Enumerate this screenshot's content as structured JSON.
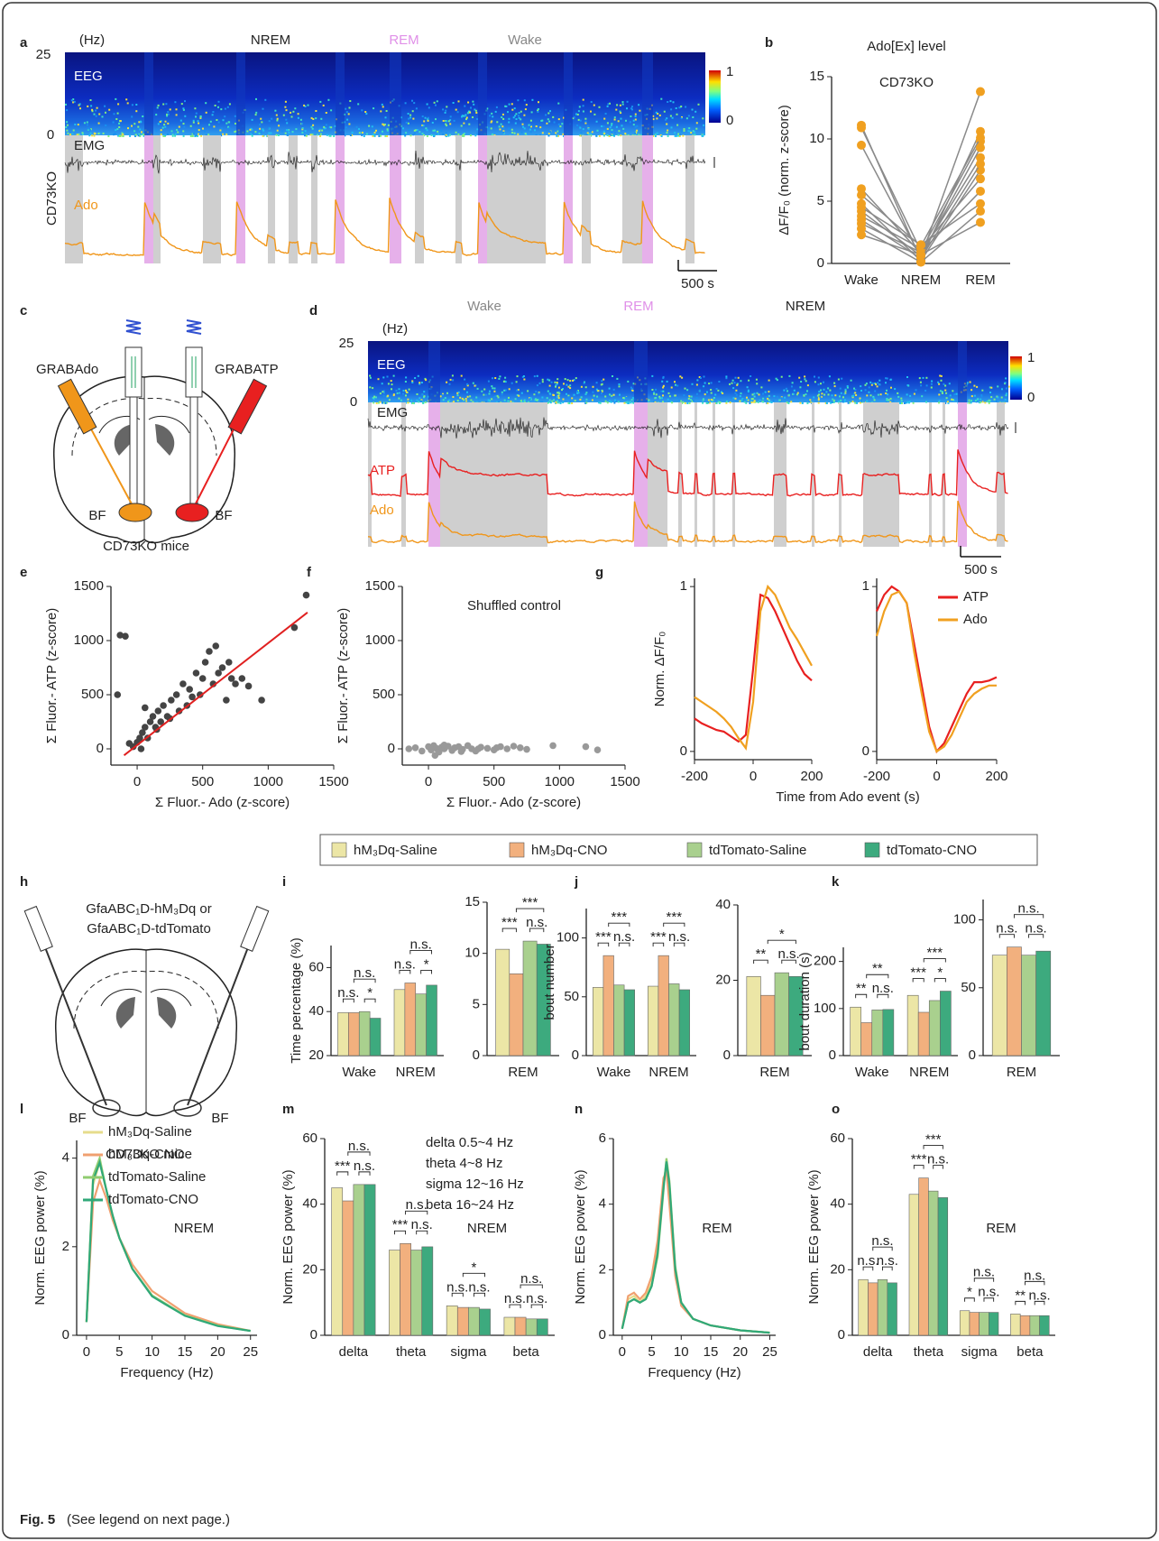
{
  "figure": {
    "panels": [
      "a",
      "b",
      "c",
      "d",
      "e",
      "f",
      "g",
      "h",
      "i",
      "j",
      "k",
      "l",
      "m",
      "n",
      "o"
    ],
    "caption": {
      "label": "Fig. 5",
      "text": "(See legend on next page.)"
    },
    "panel_a": {
      "unit": "(Hz)",
      "top": "25",
      "bottom": "0",
      "states": [
        "NREM",
        "REM",
        "Wake"
      ],
      "eeg": "EEG",
      "emg": "EMG",
      "mouse": "CD73KO",
      "trace": "Ado",
      "scale": "500 s",
      "colorbar": [
        "1",
        "0"
      ]
    },
    "panel_c": {
      "sensors": [
        "GRABAdo",
        "GRABATP"
      ],
      "regions": [
        "BF",
        "BF"
      ],
      "mice": "CD73KO mice"
    },
    "panel_d": {
      "unit": "(Hz)",
      "top": "25",
      "bottom": "0",
      "states": [
        "Wake",
        "REM",
        "NREM"
      ],
      "eeg": "EEG",
      "emg": "EMG",
      "traces": [
        "ATP",
        "Ado"
      ],
      "scale": "500 s",
      "colorbar": [
        "1",
        "0"
      ]
    },
    "panel_h": {
      "constructs": [
        "GfaABC₁D-hM₃Dq or",
        "GfaABC₁D-tdTomato"
      ],
      "regions": [
        "BF",
        "BF"
      ],
      "mice": "CD73KO mice"
    },
    "legend": [
      {
        "name": "hM₃Dq-Saline",
        "color": "#ece6a6"
      },
      {
        "name": "hM₃Dq-CNO",
        "color": "#f2b07e"
      },
      {
        "name": "tdTomato-Saline",
        "color": "#a9d08e"
      },
      {
        "name": "tdTomato-CNO",
        "color": "#3daa7e"
      }
    ]
  },
  "chart_data": [
    {
      "type": "line",
      "title": "Ado[Ex] level",
      "subtitle": "CD73KO",
      "ylabel": "ΔF/F₀ (norm. z-score)",
      "categories": [
        "Wake",
        "NREM",
        "REM"
      ],
      "color": "#f0a020",
      "line_color": "#8a8a8a",
      "ylim": [
        0,
        15
      ],
      "yticks": [
        0,
        5,
        10,
        15
      ],
      "series": [
        {
          "values": [
            11.1,
            0.3,
            10.6
          ]
        },
        {
          "values": [
            10.9,
            1.0,
            9.8
          ]
        },
        {
          "values": [
            9.5,
            0.5,
            13.8
          ]
        },
        {
          "values": [
            6.0,
            0.8,
            8.5
          ]
        },
        {
          "values": [
            5.5,
            1.4,
            10.1
          ]
        },
        {
          "values": [
            4.8,
            0.2,
            7.5
          ]
        },
        {
          "values": [
            4.2,
            0.6,
            9.3
          ]
        },
        {
          "values": [
            3.8,
            1.2,
            6.8
          ]
        },
        {
          "values": [
            3.5,
            0.4,
            8.0
          ]
        },
        {
          "values": [
            3.2,
            0.9,
            5.8
          ]
        },
        {
          "values": [
            2.8,
            0.1,
            4.2
          ]
        },
        {
          "values": [
            2.3,
            0.7,
            3.3
          ]
        },
        {
          "values": [
            4.5,
            1.5,
            4.8
          ]
        }
      ]
    },
    {
      "type": "scatter",
      "xlabel": "Σ Fluor.- Ado (z-score)",
      "ylabel": "Σ Fluor.- ATP (z-score)",
      "color": "#444",
      "xlim": [
        -200,
        1500
      ],
      "xticks": [
        0,
        500,
        1000,
        1500
      ],
      "ylim": [
        -150,
        1500
      ],
      "yticks": [
        0,
        500,
        1000,
        1500
      ],
      "x": [
        -130,
        -90,
        -150,
        -60,
        -30,
        0,
        20,
        40,
        60,
        80,
        100,
        120,
        140,
        160,
        180,
        200,
        230,
        260,
        300,
        320,
        350,
        380,
        400,
        420,
        450,
        480,
        500,
        520,
        550,
        580,
        600,
        620,
        650,
        680,
        700,
        720,
        750,
        800,
        850,
        950,
        1200,
        1290,
        60,
        150,
        250,
        30
      ],
      "y": [
        1050,
        1040,
        500,
        50,
        20,
        60,
        100,
        150,
        200,
        100,
        250,
        300,
        200,
        350,
        250,
        400,
        300,
        450,
        500,
        350,
        600,
        400,
        550,
        480,
        700,
        500,
        650,
        800,
        900,
        600,
        950,
        700,
        750,
        450,
        800,
        650,
        600,
        650,
        580,
        450,
        1120,
        1420,
        380,
        180,
        280,
        0
      ],
      "fit": {
        "x": [
          -100,
          1300
        ],
        "y": [
          -60,
          1260
        ],
        "color": "#e02020"
      }
    },
    {
      "type": "scatter",
      "annotation": "Shuffled control",
      "xlabel": "Σ Fluor.- Ado (z-score)",
      "ylabel": "Σ Fluor.- ATP (z-score)",
      "color": "#999",
      "xlim": [
        -200,
        1500
      ],
      "xticks": [
        0,
        500,
        1000,
        1500
      ],
      "ylim": [
        -150,
        1500
      ],
      "yticks": [
        0,
        500,
        1000,
        1500
      ],
      "x": [
        -150,
        -100,
        -50,
        0,
        20,
        40,
        60,
        80,
        100,
        120,
        150,
        180,
        200,
        230,
        260,
        300,
        330,
        360,
        400,
        450,
        500,
        550,
        600,
        650,
        700,
        750,
        950,
        1200,
        1290,
        50,
        120,
        250,
        380,
        520
      ],
      "y": [
        0,
        10,
        -20,
        20,
        -10,
        30,
        5,
        -30,
        15,
        0,
        25,
        -15,
        10,
        20,
        -5,
        30,
        0,
        -20,
        15,
        5,
        -10,
        20,
        0,
        25,
        10,
        -5,
        30,
        20,
        -10,
        -60,
        35,
        -25,
        0,
        10
      ]
    },
    {
      "type": "line",
      "xlabel": "Time from Ado event (s)",
      "ylabel": "Norm. ΔF/F₀",
      "x": [
        -200,
        -175,
        -150,
        -125,
        -100,
        -75,
        -50,
        -25,
        0,
        25,
        50,
        75,
        100,
        125,
        150,
        175,
        200
      ],
      "xlim": [
        -200,
        200
      ],
      "xticks": [
        -200,
        0,
        200
      ],
      "ylim": [
        -0.05,
        1.05
      ],
      "yticks": [
        0,
        1
      ],
      "series": [
        {
          "color": "#e82020",
          "values": [
            0.2,
            0.17,
            0.15,
            0.13,
            0.12,
            0.09,
            0.06,
            0.1,
            0.5,
            0.95,
            0.93,
            0.85,
            0.75,
            0.65,
            0.55,
            0.47,
            0.43
          ]
        },
        {
          "color": "#f0a020",
          "values": [
            0.33,
            0.3,
            0.27,
            0.24,
            0.2,
            0.15,
            0.08,
            0.02,
            0.3,
            0.85,
            1.0,
            0.95,
            0.85,
            0.75,
            0.68,
            0.6,
            0.52
          ]
        }
      ]
    },
    {
      "type": "line",
      "x": [
        -200,
        -175,
        -150,
        -125,
        -100,
        -75,
        -50,
        -25,
        0,
        25,
        50,
        75,
        100,
        125,
        150,
        175,
        200
      ],
      "xlim": [
        -200,
        200
      ],
      "xticks": [
        -200,
        0,
        200
      ],
      "ylim": [
        -0.05,
        1.05
      ],
      "yticks": [
        0,
        1
      ],
      "series": [
        {
          "name": "ATP",
          "color": "#e82020",
          "values": [
            0.85,
            0.95,
            1.0,
            0.97,
            0.9,
            0.65,
            0.4,
            0.15,
            0.0,
            0.05,
            0.15,
            0.25,
            0.35,
            0.42,
            0.42,
            0.43,
            0.45
          ]
        },
        {
          "name": "Ado",
          "color": "#f0a020",
          "values": [
            0.7,
            0.85,
            0.95,
            0.97,
            0.9,
            0.6,
            0.35,
            0.12,
            0.0,
            0.03,
            0.1,
            0.2,
            0.3,
            0.35,
            0.38,
            0.4,
            0.4
          ]
        }
      ]
    },
    {
      "type": "bar",
      "ylabel": "Time percentage (%)",
      "categories": [
        "Wake",
        "NREM"
      ],
      "ylim": [
        20,
        70
      ],
      "yticks": [
        20,
        40,
        60
      ],
      "series": [
        {
          "values": [
            39.5,
            50
          ]
        },
        {
          "values": [
            39.5,
            53
          ]
        },
        {
          "values": [
            40,
            48
          ]
        },
        {
          "values": [
            37,
            52
          ]
        }
      ],
      "significance": [
        [
          "n.s.",
          "*",
          "n.s."
        ],
        [
          "n.s.",
          "*",
          "n.s."
        ]
      ]
    },
    {
      "type": "bar",
      "categories": [
        "REM"
      ],
      "ylim": [
        0,
        15
      ],
      "yticks": [
        0,
        5,
        10,
        15
      ],
      "series": [
        {
          "values": [
            10.4
          ]
        },
        {
          "values": [
            8
          ]
        },
        {
          "values": [
            11.2
          ]
        },
        {
          "values": [
            10.9
          ]
        }
      ],
      "significance": [
        [
          "***",
          "n.s.",
          "***"
        ]
      ]
    },
    {
      "type": "bar",
      "ylabel": "bout number",
      "categories": [
        "Wake",
        "NREM"
      ],
      "ylim": [
        0,
        125
      ],
      "yticks": [
        0,
        50,
        100
      ],
      "series": [
        {
          "values": [
            58,
            59
          ]
        },
        {
          "values": [
            85,
            85
          ]
        },
        {
          "values": [
            60,
            61
          ]
        },
        {
          "values": [
            56,
            56
          ]
        }
      ],
      "significance": [
        [
          "***",
          "n.s.",
          "***"
        ],
        [
          "***",
          "n.s.",
          "***"
        ]
      ]
    },
    {
      "type": "bar",
      "categories": [
        "REM"
      ],
      "ylim": [
        0,
        40
      ],
      "yticks": [
        0,
        20,
        40
      ],
      "series": [
        {
          "values": [
            21
          ]
        },
        {
          "values": [
            16
          ]
        },
        {
          "values": [
            22
          ]
        },
        {
          "values": [
            21
          ]
        }
      ],
      "significance": [
        [
          "**",
          "n.s.",
          "*"
        ]
      ]
    },
    {
      "type": "bar",
      "ylabel": "bout duration (s)",
      "categories": [
        "Wake",
        "NREM"
      ],
      "ylim": [
        0,
        230
      ],
      "yticks": [
        0,
        100,
        200
      ],
      "series": [
        {
          "values": [
            103,
            128
          ]
        },
        {
          "values": [
            70,
            92
          ]
        },
        {
          "values": [
            97,
            117
          ]
        },
        {
          "values": [
            98,
            137
          ]
        }
      ],
      "significance": [
        [
          "**",
          "n.s.",
          "**"
        ],
        [
          "***",
          "*",
          "***"
        ]
      ]
    },
    {
      "type": "bar",
      "categories": [
        "REM"
      ],
      "ylim": [
        0,
        115
      ],
      "yticks": [
        0,
        50,
        100
      ],
      "series": [
        {
          "values": [
            74
          ]
        },
        {
          "values": [
            80
          ]
        },
        {
          "values": [
            74
          ]
        },
        {
          "values": [
            77
          ]
        }
      ],
      "significance": [
        [
          "n.s.",
          "n.s.",
          "n.s."
        ]
      ]
    },
    {
      "type": "line",
      "ylabel": "Norm. EEG power (%)",
      "xlabel": "Frequency (Hz)",
      "annotations": [
        "NREM"
      ],
      "x": [
        0,
        1,
        2,
        3,
        4,
        5,
        7,
        10,
        12,
        15,
        20,
        25
      ],
      "xlim": [
        -1.5,
        26
      ],
      "xticks": [
        0,
        5,
        10,
        15,
        20,
        25
      ],
      "ylim": [
        0,
        4.4
      ],
      "yticks": [
        0,
        2,
        4
      ],
      "series": [
        {
          "name": "hM₃Dq-Saline",
          "color": "#e6dc8c",
          "values": [
            0.3,
            3.4,
            3.9,
            3.3,
            2.7,
            2.2,
            1.5,
            0.9,
            0.7,
            0.45,
            0.22,
            0.1
          ]
        },
        {
          "name": "hM₃Dq-CNO",
          "color": "#f0a070",
          "values": [
            0.3,
            3.0,
            3.5,
            3.1,
            2.6,
            2.2,
            1.6,
            1.0,
            0.8,
            0.5,
            0.25,
            0.1
          ]
        },
        {
          "name": "tdTomato-Saline",
          "color": "#90cc70",
          "values": [
            0.3,
            3.6,
            4.0,
            3.3,
            2.7,
            2.2,
            1.5,
            0.9,
            0.72,
            0.45,
            0.22,
            0.1
          ]
        },
        {
          "name": "tdTomato-CNO",
          "color": "#30a878",
          "values": [
            0.3,
            3.5,
            3.9,
            3.3,
            2.7,
            2.2,
            1.5,
            0.88,
            0.7,
            0.44,
            0.21,
            0.1
          ]
        }
      ]
    },
    {
      "type": "bar",
      "ylabel": "Norm. EEG power (%)",
      "annotations": [
        "delta 0.5~4 Hz",
        "theta 4~8 Hz",
        "sigma 12~16 Hz",
        "beta 16~24 Hz",
        "NREM"
      ],
      "categories": [
        "delta",
        "theta",
        "sigma",
        "beta"
      ],
      "ylim": [
        0,
        60
      ],
      "yticks": [
        0,
        20,
        40,
        60
      ],
      "series": [
        {
          "values": [
            45,
            26,
            9,
            5.5
          ]
        },
        {
          "values": [
            41,
            28,
            8.5,
            5.5
          ]
        },
        {
          "values": [
            46,
            26,
            8.5,
            5
          ]
        },
        {
          "values": [
            46,
            27,
            8,
            5
          ]
        }
      ],
      "significance": [
        [
          "***",
          "n.s.",
          "n.s."
        ],
        [
          "***",
          "n.s.",
          "n.s."
        ],
        [
          "n.s.",
          "n.s.",
          "*"
        ],
        [
          "n.s.",
          "n.s.",
          "n.s."
        ]
      ]
    },
    {
      "type": "line",
      "ylabel": "Norm. EEG power (%)",
      "xlabel": "Frequency (Hz)",
      "annotations": [
        "REM"
      ],
      "x": [
        0,
        1,
        2,
        3,
        4,
        5,
        6,
        7,
        7.5,
        8,
        9,
        10,
        12,
        15,
        20,
        25
      ],
      "xlim": [
        -1.5,
        26
      ],
      "xticks": [
        0,
        5,
        10,
        15,
        20,
        25
      ],
      "ylim": [
        0,
        6
      ],
      "yticks": [
        0,
        2,
        4,
        6
      ],
      "series": [
        {
          "color": "#e6dc8c",
          "values": [
            0.2,
            1.1,
            1.2,
            1.0,
            1.2,
            1.6,
            2.6,
            4.6,
            5.3,
            4.5,
            2.0,
            1.0,
            0.5,
            0.3,
            0.15,
            0.08
          ]
        },
        {
          "color": "#f0a070",
          "values": [
            0.2,
            1.2,
            1.3,
            1.1,
            1.3,
            1.8,
            2.9,
            4.8,
            5.0,
            4.0,
            1.8,
            0.9,
            0.5,
            0.3,
            0.15,
            0.08
          ]
        },
        {
          "color": "#90cc70",
          "values": [
            0.2,
            1.0,
            1.1,
            1.0,
            1.1,
            1.5,
            2.4,
            4.4,
            5.4,
            4.7,
            2.1,
            1.0,
            0.5,
            0.3,
            0.15,
            0.08
          ]
        },
        {
          "color": "#30a878",
          "values": [
            0.2,
            1.0,
            1.1,
            1.0,
            1.1,
            1.5,
            2.5,
            4.5,
            5.3,
            4.6,
            2.0,
            1.0,
            0.5,
            0.3,
            0.15,
            0.08
          ]
        }
      ]
    },
    {
      "type": "bar",
      "ylabel": "Norm. EEG power (%)",
      "annotations": [
        "REM"
      ],
      "categories": [
        "delta",
        "theta",
        "sigma",
        "beta"
      ],
      "ylim": [
        0,
        60
      ],
      "yticks": [
        0,
        20,
        40,
        60
      ],
      "series": [
        {
          "values": [
            17,
            43,
            7.5,
            6.5
          ]
        },
        {
          "values": [
            16,
            48,
            7,
            6
          ]
        },
        {
          "values": [
            17,
            44,
            7,
            6
          ]
        },
        {
          "values": [
            16,
            42,
            7,
            6
          ]
        }
      ],
      "significance": [
        [
          "n.s.",
          "n.s.",
          "n.s."
        ],
        [
          "***",
          "n.s.",
          "***"
        ],
        [
          "*",
          "n.s.",
          "n.s."
        ],
        [
          "**",
          "n.s.",
          "n.s."
        ]
      ]
    }
  ]
}
